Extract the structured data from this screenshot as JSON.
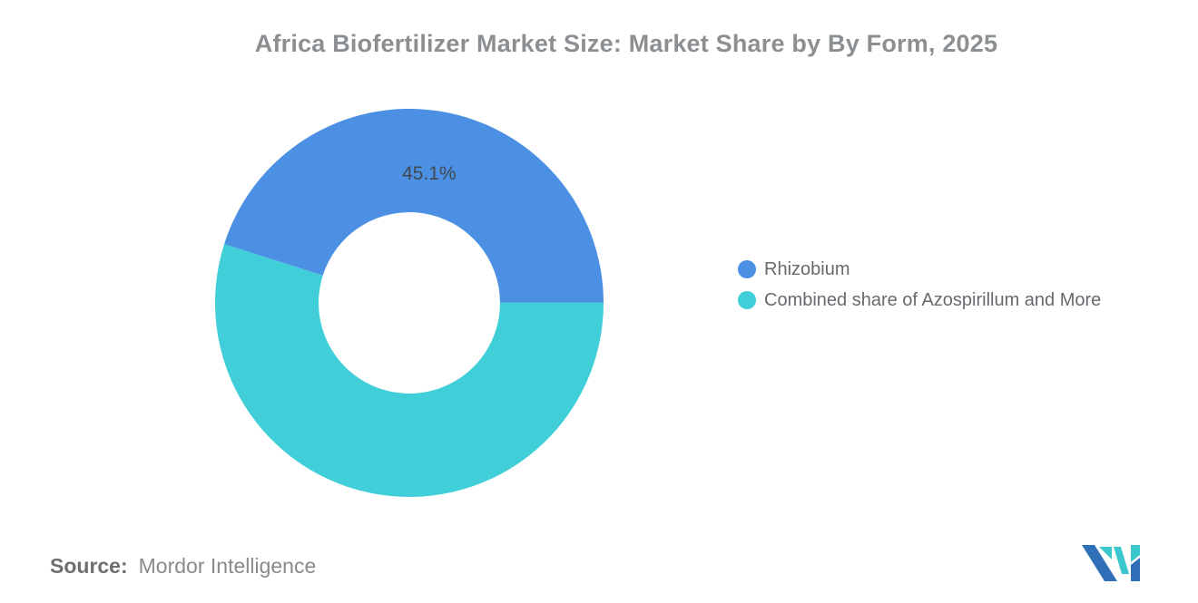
{
  "title": "Africa Biofertilizer Market Size: Market Share by By Form, 2025",
  "chart_data": {
    "type": "pie",
    "subtype": "donut",
    "title": "Africa Biofertilizer Market Size: Market Share by By Form, 2025",
    "slices": [
      {
        "name": "Rhizobium",
        "value": 45.1,
        "label": "45.1%",
        "color": "#4B90E2"
      },
      {
        "name": "Combined share of Azospirillum and More",
        "value": 54.9,
        "label": "",
        "color": "#40CFD8"
      }
    ],
    "start_angle_deg": -72.4,
    "inner_radius_ratio": 0.467,
    "label_radius_ratio": 0.67,
    "label_color": "#414750",
    "legend_position": "right",
    "background": "#ffffff"
  },
  "source": {
    "label": "Source:",
    "text": "Mordor Intelligence"
  },
  "logo": {
    "name": "mordor-intelligence-logo",
    "blue": "#2E6FB7",
    "teal": "#3BC7CD"
  }
}
